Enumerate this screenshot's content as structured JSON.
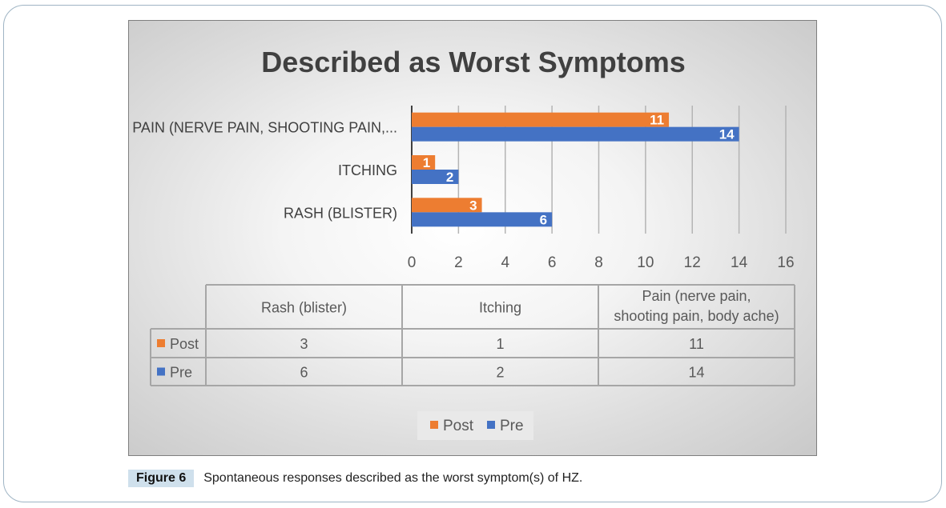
{
  "caption": {
    "label": "Figure 6",
    "text": "Spontaneous responses described as the worst symptom(s) of HZ."
  },
  "colors": {
    "post": "#ed7d31",
    "pre": "#4472c4"
  },
  "chart_data": {
    "type": "bar",
    "orientation": "horizontal",
    "title": "Described as Worst Symptoms",
    "categories": [
      "PAIN (NERVE PAIN, SHOOTING PAIN,...",
      "ITCHING",
      "RASH (BLISTER)"
    ],
    "series": [
      {
        "name": "Post",
        "values": [
          11,
          1,
          3
        ]
      },
      {
        "name": "Pre",
        "values": [
          14,
          2,
          6
        ]
      }
    ],
    "xlim": [
      0,
      16
    ],
    "xticks": [
      "0",
      "2",
      "4",
      "6",
      "8",
      "10",
      "12",
      "14",
      "16"
    ],
    "grid": true,
    "legend": "bottom",
    "table": {
      "headers": [
        "Rash (blister)",
        "Itching",
        "Pain (nerve pain, shooting pain, body ache)"
      ],
      "rows": [
        {
          "name": "Post",
          "values": [
            "3",
            "1",
            "11"
          ]
        },
        {
          "name": "Pre",
          "values": [
            "6",
            "2",
            "14"
          ]
        }
      ]
    }
  }
}
